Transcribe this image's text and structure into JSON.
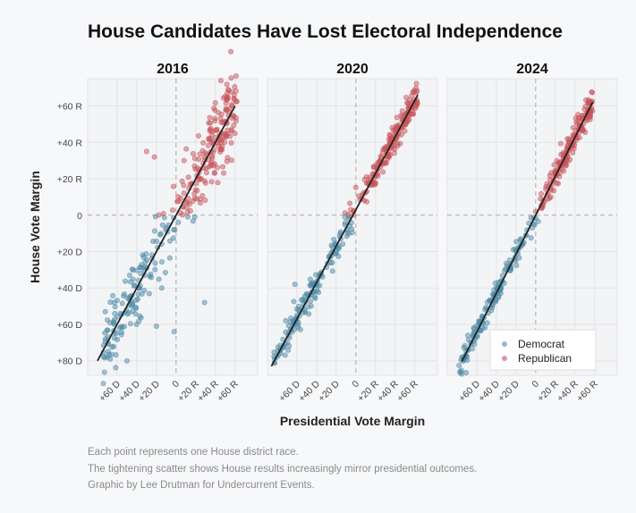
{
  "title": "House Candidates Have Lost Electoral Independence",
  "captions": [
    "Each point represents one House district race.",
    "The tightening scatter shows House results increasingly mirror presidential outcomes.",
    "Graphic by Lee Drutman for Undercurrent Events."
  ],
  "chart_data": {
    "type": "scatter",
    "xlabel": "Presidential Vote Margin",
    "ylabel": "House Vote Margin",
    "xlim": [
      -90,
      83
    ],
    "ylim": [
      -88,
      75
    ],
    "xticks": [
      {
        "v": -60,
        "label": "+60 D"
      },
      {
        "v": -40,
        "label": "+40 D"
      },
      {
        "v": -20,
        "label": "+20 D"
      },
      {
        "v": 0,
        "label": "0"
      },
      {
        "v": 20,
        "label": "+20 R"
      },
      {
        "v": 40,
        "label": "+40 R"
      },
      {
        "v": 60,
        "label": "+60 R"
      }
    ],
    "yticks": [
      {
        "v": 60,
        "label": "+60 R"
      },
      {
        "v": 40,
        "label": "+40 R"
      },
      {
        "v": 20,
        "label": "+20 R"
      },
      {
        "v": 0,
        "label": "0"
      },
      {
        "v": -20,
        "label": "+20 D"
      },
      {
        "v": -40,
        "label": "+40 D"
      },
      {
        "v": -60,
        "label": "+60 D"
      },
      {
        "v": -80,
        "label": "+80 D"
      }
    ],
    "legend": {
      "position": "bottom-right",
      "entries": [
        {
          "name": "Democrat",
          "color": "#4d8aa6"
        },
        {
          "name": "Republican",
          "color": "#c8545a"
        }
      ]
    },
    "panels": [
      {
        "title": "2016",
        "fit": {
          "x": [
            -80,
            60
          ],
          "slope": 1.0,
          "intercept": 0
        },
        "points": {
          "n": 330,
          "x_range": [
            -75,
            62
          ],
          "noise_sd": 9,
          "seed": 7
        },
        "outliers": [
          [
            -50,
            -80
          ],
          [
            29,
            -48
          ],
          [
            -2,
            -64
          ],
          [
            -20,
            -61
          ],
          [
            -30,
            35
          ],
          [
            -22,
            32
          ],
          [
            12,
            -1
          ],
          [
            19,
            -1
          ],
          [
            -70,
            -78
          ]
        ]
      },
      {
        "title": "2020",
        "fit": {
          "x": [
            -86,
            63
          ],
          "slope": 1.0,
          "intercept": 3
        },
        "points": {
          "n": 340,
          "x_range": [
            -84,
            63
          ],
          "noise_sd": 3.8,
          "seed": 11
        },
        "outliers": [
          [
            -62,
            -38
          ]
        ]
      },
      {
        "title": "2024",
        "fit": {
          "x": [
            -75,
            58
          ],
          "slope": 1.07,
          "intercept": 0
        },
        "points": {
          "n": 340,
          "x_range": [
            -78,
            58
          ],
          "noise_sd": 3.6,
          "seed": 23
        },
        "outliers": []
      }
    ]
  }
}
